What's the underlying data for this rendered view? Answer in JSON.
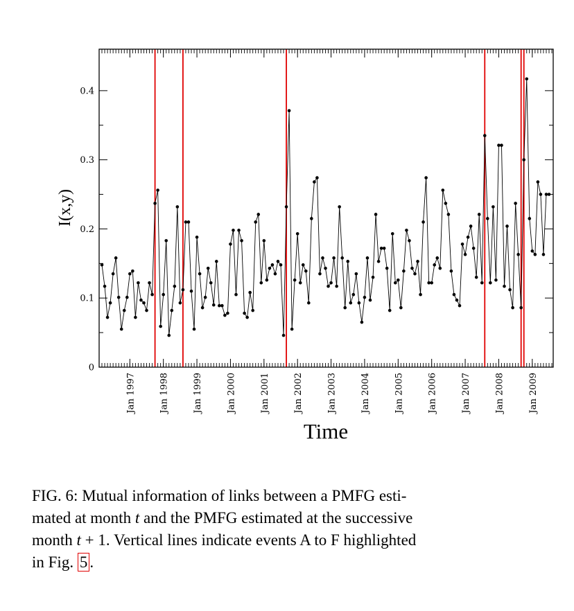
{
  "chart_data": {
    "type": "line",
    "xlabel": "Time",
    "ylabel": "I(x,y)",
    "ylim": [
      0,
      0.46
    ],
    "yticks": [
      0,
      0.1,
      0.2,
      0.3,
      0.4
    ],
    "ytick_labels": [
      "0",
      "0.1",
      "0.2",
      "0.3",
      "0.4"
    ],
    "x_start": "1996-03",
    "xtick_labels": [
      "Jan 1997",
      "Jan 1998",
      "Jan 1999",
      "Jan 2000",
      "Jan 2001",
      "Jan 2002",
      "Jan 2003",
      "Jan 2004",
      "Jan 2005",
      "Jan 2006",
      "Jan 2007",
      "Jan 2008",
      "Jan 2009"
    ],
    "event_lines": [
      "1997-10",
      "1998-08",
      "2001-09",
      "2007-08",
      "2008-09",
      "2008-10"
    ],
    "line_color": "#000000",
    "event_line_color": "#e00000",
    "grid": false,
    "values": [
      0.148,
      0.117,
      0.072,
      0.093,
      0.135,
      0.158,
      0.101,
      0.055,
      0.082,
      0.101,
      0.135,
      0.139,
      0.072,
      0.122,
      0.097,
      0.093,
      0.082,
      0.122,
      0.105,
      0.237,
      0.256,
      0.059,
      0.105,
      0.183,
      0.046,
      0.082,
      0.117,
      0.232,
      0.093,
      0.112,
      0.21,
      0.21,
      0.11,
      0.055,
      0.188,
      0.135,
      0.086,
      0.101,
      0.143,
      0.122,
      0.09,
      0.153,
      0.089,
      0.089,
      0.075,
      0.078,
      0.178,
      0.198,
      0.105,
      0.198,
      0.183,
      0.078,
      0.072,
      0.108,
      0.082,
      0.21,
      0.221,
      0.122,
      0.183,
      0.126,
      0.143,
      0.148,
      0.135,
      0.153,
      0.148,
      0.046,
      0.232,
      0.371,
      0.055,
      0.126,
      0.193,
      0.122,
      0.148,
      0.139,
      0.093,
      0.215,
      0.268,
      0.274,
      0.135,
      0.158,
      0.143,
      0.117,
      0.122,
      0.158,
      0.117,
      0.232,
      0.158,
      0.086,
      0.153,
      0.093,
      0.105,
      0.135,
      0.093,
      0.065,
      0.101,
      0.158,
      0.097,
      0.13,
      0.221,
      0.153,
      0.172,
      0.172,
      0.143,
      0.082,
      0.193,
      0.122,
      0.126,
      0.086,
      0.139,
      0.198,
      0.183,
      0.143,
      0.135,
      0.153,
      0.105,
      0.21,
      0.274,
      0.122,
      0.122,
      0.148,
      0.158,
      0.143,
      0.256,
      0.237,
      0.221,
      0.139,
      0.105,
      0.097,
      0.089,
      0.178,
      0.163,
      0.188,
      0.204,
      0.172,
      0.13,
      0.221,
      0.122,
      0.335,
      0.215,
      0.122,
      0.232,
      0.126,
      0.321,
      0.321,
      0.117,
      0.204,
      0.112,
      0.086,
      0.237,
      0.163,
      0.086,
      0.3,
      0.417,
      0.215,
      0.168,
      0.163,
      0.268,
      0.25,
      0.163,
      0.25,
      0.25
    ]
  },
  "caption": {
    "part1": "FIG. 6: Mutual information of links between a PMFG esti-",
    "part2a": "mated at month ",
    "var_t": "t",
    "part2b": " and the PMFG estimated at the successive",
    "part3a": "month ",
    "var_t1": "t",
    "plus_one": " + 1",
    "part3b": ". Vertical lines indicate events A to F highlighted",
    "part4a": "in Fig. ",
    "fig_ref": "5",
    "part4b": "."
  }
}
